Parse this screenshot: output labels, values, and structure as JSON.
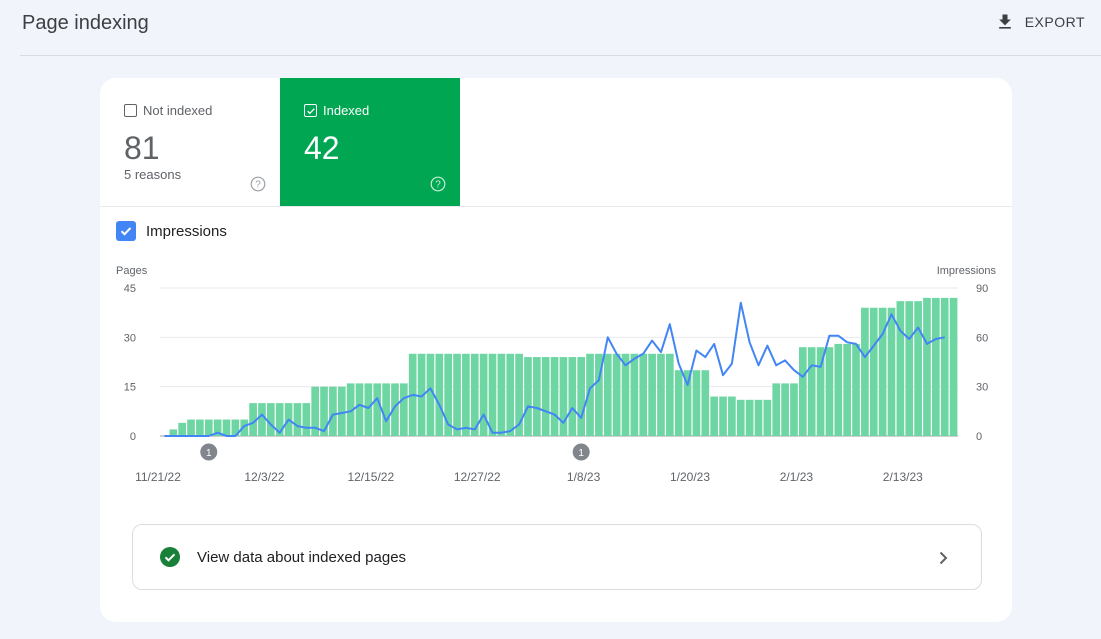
{
  "header": {
    "title": "Page indexing",
    "export_label": "EXPORT"
  },
  "tiles": {
    "not_indexed": {
      "label": "Not indexed",
      "value": "81",
      "sub": "5 reasons"
    },
    "indexed": {
      "label": "Indexed",
      "value": "42"
    }
  },
  "impressions_toggle": {
    "label": "Impressions",
    "checked": true
  },
  "view_link": {
    "label": "View data about indexed pages"
  },
  "colors": {
    "indexed_green": "#00a652",
    "bar_green": "#6dd6a2",
    "line_blue": "#4285f4",
    "check_blue": "#4285f4"
  },
  "chart_data": {
    "type": "bar+line",
    "left_axis_title": "Pages",
    "right_axis_title": "Impressions",
    "left_ticks": [
      "45",
      "30",
      "15",
      "0"
    ],
    "right_ticks": [
      "90",
      "60",
      "30",
      "0"
    ],
    "ylim_pages": [
      0,
      45
    ],
    "ylim_impressions": [
      0,
      90
    ],
    "x_labels": [
      "11/21/22",
      "12/3/22",
      "12/15/22",
      "12/27/22",
      "1/8/23",
      "1/20/23",
      "2/1/23",
      "2/13/23"
    ],
    "x_label_days": [
      0,
      12,
      24,
      36,
      48,
      60,
      72,
      84
    ],
    "annotations": [
      {
        "day": 5,
        "label": "1"
      },
      {
        "day": 47,
        "label": "1"
      }
    ],
    "series": [
      {
        "name": "Indexed pages",
        "kind": "bar",
        "values": [
          0,
          2,
          4,
          5,
          5,
          5,
          5,
          5,
          5,
          5,
          10,
          10,
          10,
          10,
          10,
          10,
          10,
          15,
          15,
          15,
          15,
          16,
          16,
          16,
          16,
          16,
          16,
          16,
          25,
          25,
          25,
          25,
          25,
          25,
          25,
          25,
          25,
          25,
          25,
          25,
          25,
          24,
          24,
          24,
          24,
          24,
          24,
          24,
          25,
          25,
          25,
          25,
          25,
          25,
          25,
          25,
          25,
          25,
          20,
          20,
          20,
          20,
          12,
          12,
          12,
          11,
          11,
          11,
          11,
          16,
          16,
          16,
          27,
          27,
          27,
          27,
          28,
          28,
          28,
          39,
          39,
          39,
          39,
          41,
          41,
          41,
          42,
          42,
          42,
          42
        ]
      },
      {
        "name": "Impressions",
        "kind": "line",
        "values": [
          0,
          0,
          0,
          0,
          0,
          0,
          2,
          0,
          0,
          6,
          8,
          13,
          7,
          2,
          10,
          6,
          5,
          5,
          3,
          13,
          14,
          15,
          19,
          17,
          23,
          9,
          18,
          23,
          25,
          24,
          29,
          19,
          7,
          4,
          5,
          4,
          13,
          2,
          2,
          3,
          7,
          18,
          17,
          15,
          13,
          8,
          17,
          11,
          29,
          34,
          60,
          50,
          43,
          47,
          50,
          58,
          51,
          68,
          44,
          31,
          52,
          48,
          56,
          37,
          44,
          81,
          57,
          43,
          55,
          43,
          46,
          40,
          36,
          43,
          42,
          61,
          61,
          57,
          56,
          48,
          55,
          62,
          74,
          64,
          59,
          66,
          56,
          59,
          60
        ]
      }
    ]
  }
}
